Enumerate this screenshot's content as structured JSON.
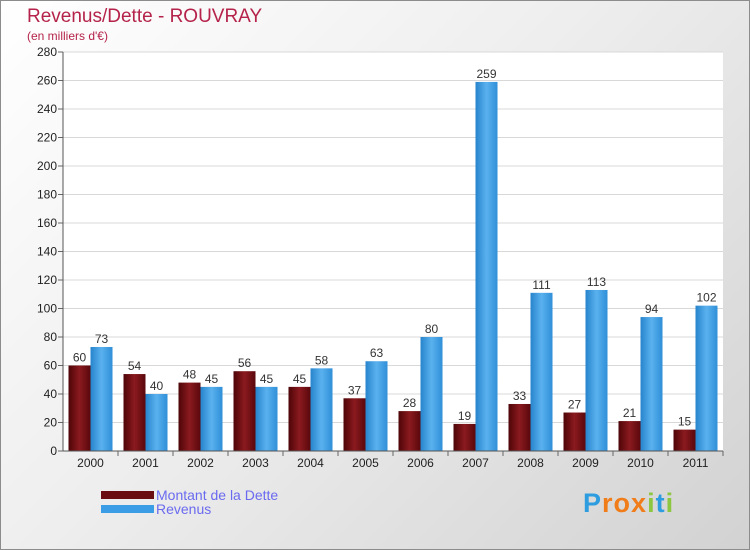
{
  "title": "Revenus/Dette - ROUVRAY",
  "subtitle": "(en milliers d'€)",
  "logo": {
    "letters": [
      "P",
      "r",
      "o",
      "x",
      "i",
      "t",
      "i"
    ],
    "colors": [
      "#2e9de0",
      "#f07d1a",
      "#f07d1a",
      "#f07d1a",
      "#8dc63f",
      "#2e9de0",
      "#8dc63f"
    ]
  },
  "colors": {
    "dette": "#7a0f14",
    "revenus": "#3b9de6"
  },
  "chart_data": {
    "type": "bar",
    "title": "Revenus/Dette - ROUVRAY",
    "ylabel": "(en milliers d'€)",
    "ylim": [
      0,
      280
    ],
    "yticks": [
      "0",
      "20",
      "40",
      "60",
      "80",
      "100",
      "120",
      "140",
      "160",
      "180",
      "200",
      "220",
      "240",
      "260",
      "280"
    ],
    "categories": [
      "2000",
      "2001",
      "2002",
      "2003",
      "2004",
      "2005",
      "2006",
      "2007",
      "2008",
      "2009",
      "2010",
      "2011"
    ],
    "series": [
      {
        "name": "Montant de la Dette",
        "values": [
          60,
          54,
          48,
          56,
          45,
          37,
          28,
          19,
          33,
          27,
          21,
          15
        ]
      },
      {
        "name": "Revenus",
        "values": [
          73,
          40,
          45,
          45,
          58,
          63,
          80,
          259,
          111,
          113,
          94,
          102
        ]
      }
    ],
    "legend": "bottom-left"
  }
}
